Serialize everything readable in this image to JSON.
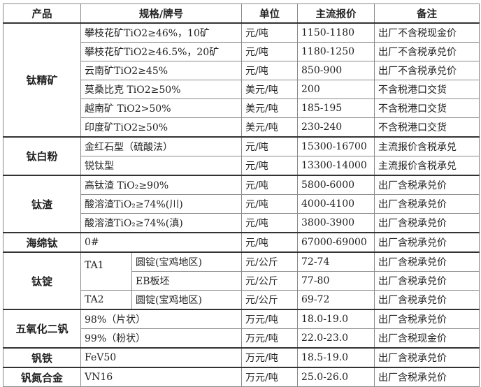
{
  "headers": [
    "产品",
    "规格/牌号",
    "单位",
    "主流报价",
    "备注"
  ],
  "groups": [
    {
      "product": "钛精矿",
      "rows": [
        {
          "spec": "攀枝花矿TiO2≥46%，10矿",
          "unit": "元/吨",
          "price": "1150-1180",
          "note": "出厂不含税现金价"
        },
        {
          "spec": "攀枝花矿TiO2≥46.5%，20矿",
          "unit": "元/吨",
          "price": "1180-1250",
          "note": "出厂不含税承兑价"
        },
        {
          "spec": "云南矿TiO2≥45%",
          "unit": "元/吨",
          "price": "850-900",
          "note": "出厂不含税承兑价"
        },
        {
          "spec": "莫桑比克 TiO2≥50%",
          "unit": "美元/吨",
          "price": "200",
          "note": "不含税港口交货"
        },
        {
          "spec": "越南矿 TiO2>50%",
          "unit": "美元/吨",
          "price": "185-195",
          "note": "不含税港口交货"
        },
        {
          "spec": "印度矿TiO2≥50%",
          "unit": "美元/吨",
          "price": "230-240",
          "note": "不含税港口交货"
        }
      ]
    },
    {
      "product": "钛白粉",
      "rows": [
        {
          "spec": "金红石型（硫酸法）",
          "unit": "元/吨",
          "price": "15300-16700",
          "note": "主流报价含税承兑"
        },
        {
          "spec": "锐钛型",
          "unit": "元/吨",
          "price": "13300-14000",
          "note": "主流报价含税承兑"
        }
      ]
    },
    {
      "product": "钛渣",
      "rows": [
        {
          "spec": "高钛渣 TiO₂≥90%",
          "unit": "元/吨",
          "price": "5800-6000",
          "note": "出厂含税承兑价"
        },
        {
          "spec": "酸溶渣TiO₂≥74%(川)",
          "unit": "元/吨",
          "price": "4000-4100",
          "note": "出厂含税承兑价"
        },
        {
          "spec": "酸溶渣TiO₂≥74%(滇)",
          "unit": "元/吨",
          "price": "3800-3900",
          "note": "出厂含税承兑价"
        }
      ]
    },
    {
      "product": "海绵钛",
      "rows": [
        {
          "spec": "0#",
          "unit": "元/吨",
          "price": "67000-69000",
          "note": "出厂含税承兑价"
        }
      ]
    },
    {
      "product": "钛锭",
      "rows": [
        {
          "grade": "TA1",
          "spec": "圆锭(宝鸡地区)",
          "unit": "元/公斤",
          "price": "72-74",
          "note": "出厂含税承兑价"
        },
        {
          "spec": "EB板坯",
          "unit": "元/公斤",
          "price": "77-80",
          "note": "出厂含税承兑价"
        },
        {
          "grade": "TA2",
          "spec": "圆锭(宝鸡地区)",
          "unit": "元/公斤",
          "price": "69-72",
          "note": "出厂含税承兑价"
        }
      ]
    },
    {
      "product": "五氧化二钒",
      "rows": [
        {
          "spec": "98%（片状）",
          "unit": "万元/吨",
          "price": "18.0-19.0",
          "note": "出厂含税承兑价"
        },
        {
          "spec": "99%（粉状）",
          "unit": "万元/吨",
          "price": "22.0-23.0",
          "note": "出厂含税现金价"
        }
      ]
    },
    {
      "product": "钒铁",
      "rows": [
        {
          "spec": "FeV50",
          "unit": "万元/吨",
          "price": "18.5-19.0",
          "note": "出厂含税承兑价"
        }
      ]
    },
    {
      "product": "钒氮合金",
      "rows": [
        {
          "spec": "VN16",
          "unit": "万元/吨",
          "price": "25.0-26.0",
          "note": "出厂含税承兑价"
        }
      ]
    }
  ]
}
